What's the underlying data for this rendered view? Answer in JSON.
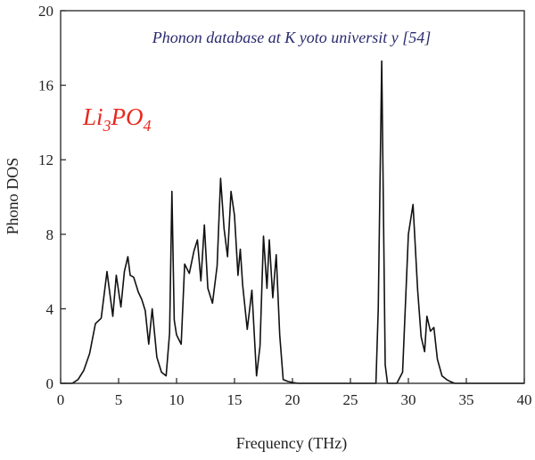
{
  "chart_data": {
    "type": "line",
    "title": "Phonon database at K yoto universit y [54]",
    "annotation": {
      "base1": "Li",
      "sub1": "3",
      "base2": "PO",
      "sub2": "4",
      "color": "#e8281e"
    },
    "xlabel": "Frequency (THz)",
    "ylabel": "Phono DOS",
    "xlim": [
      0,
      40
    ],
    "ylim": [
      0,
      20
    ],
    "xticks": [
      0,
      5,
      10,
      15,
      20,
      25,
      30,
      35,
      40
    ],
    "yticks": [
      0,
      4,
      8,
      12,
      16,
      20
    ],
    "grid": false,
    "line_color": "#111111",
    "title_color": "#2a2a6e",
    "series": [
      {
        "x": [
          0,
          1.0,
          1.5,
          2.0,
          2.5,
          3.0,
          3.5,
          4.0,
          4.5,
          4.8,
          5.2,
          5.5,
          5.8,
          6.0,
          6.3,
          6.7,
          7.0,
          7.3,
          7.6,
          7.9,
          8.3,
          8.7,
          9.1,
          9.4,
          9.6,
          9.8,
          10.0,
          10.4,
          10.7,
          11.1,
          11.5,
          11.8,
          12.1,
          12.4,
          12.7,
          13.1,
          13.5,
          13.8,
          14.1,
          14.4,
          14.7,
          15.0,
          15.3,
          15.5,
          15.7,
          16.1,
          16.5,
          16.9,
          17.2,
          17.5,
          17.8,
          18.0,
          18.3,
          18.6,
          18.9,
          19.2,
          19.6,
          20.0,
          20.5,
          21,
          27.2,
          27.4,
          27.7,
          28.0,
          28.2,
          28.6,
          29.0,
          29.5,
          30.0,
          30.4,
          30.8,
          31.1,
          31.4,
          31.6,
          31.9,
          32.2,
          32.5,
          32.9,
          33.3,
          33.6,
          34,
          40
        ],
        "y": [
          0,
          0,
          0.2,
          0.7,
          1.6,
          3.2,
          3.5,
          6.0,
          3.6,
          5.8,
          4.1,
          6.0,
          6.8,
          5.8,
          5.7,
          4.9,
          4.5,
          3.9,
          2.1,
          4.0,
          1.4,
          0.6,
          0.4,
          2.7,
          10.3,
          3.4,
          2.6,
          2.1,
          6.4,
          5.9,
          7.1,
          7.7,
          5.5,
          8.5,
          5.1,
          4.3,
          6.3,
          11.0,
          8.3,
          6.8,
          10.3,
          9.0,
          5.8,
          7.2,
          5.3,
          2.9,
          5.0,
          0.4,
          2.0,
          7.9,
          5.1,
          7.7,
          4.6,
          6.9,
          2.6,
          0.2,
          0.1,
          0.05,
          0,
          0,
          0,
          4.0,
          17.3,
          1.0,
          0,
          0,
          0,
          0.6,
          8.0,
          9.6,
          5.0,
          2.5,
          1.7,
          3.6,
          2.8,
          3.0,
          1.3,
          0.4,
          0.2,
          0.1,
          0,
          0
        ]
      }
    ]
  }
}
